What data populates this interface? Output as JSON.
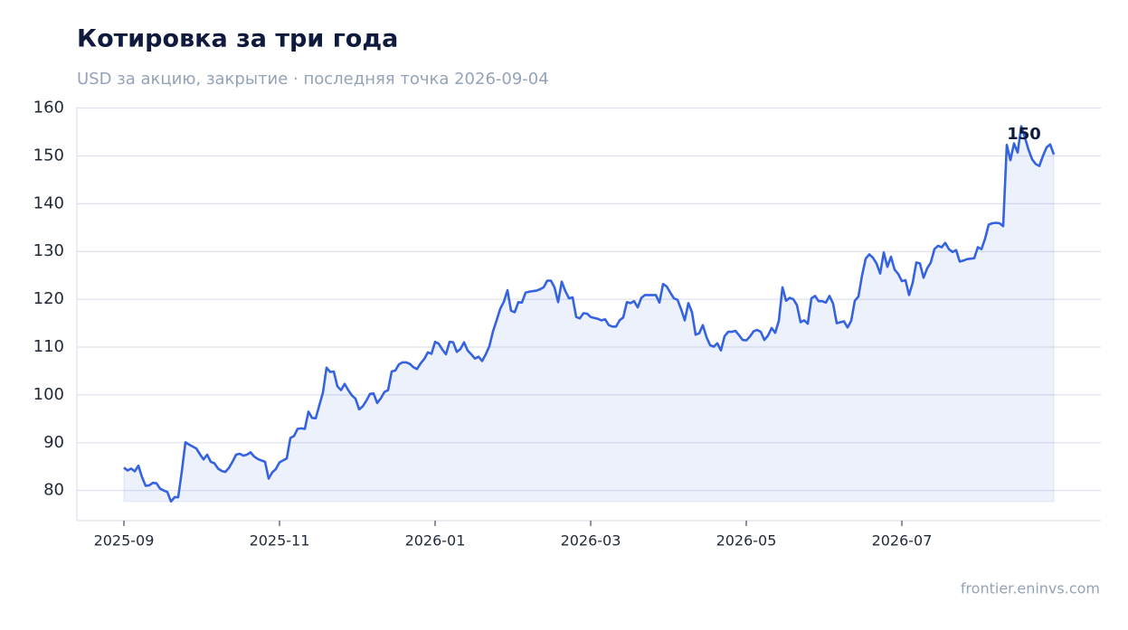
{
  "chart_data": {
    "type": "line",
    "title": "Котировка за три года",
    "subtitle": "USD за акцию, закрытие · последняя точка 2026-09-04",
    "source": "frontier.eninvs.com",
    "color": "#3563e0",
    "area": true,
    "grid": true,
    "last_value_label": "150",
    "values": [
      84.8,
      84.2,
      84.6,
      84.0,
      85.2,
      82.8,
      81.0,
      81.1,
      81.6,
      81.5,
      80.4,
      80.0,
      79.7,
      77.7,
      78.6,
      78.6,
      84.0,
      90.1,
      89.6,
      89.2,
      88.8,
      87.6,
      86.5,
      87.5,
      86.0,
      85.7,
      84.6,
      84.1,
      83.9,
      84.7,
      86.0,
      87.5,
      87.7,
      87.3,
      87.5,
      88.0,
      87.1,
      86.6,
      86.3,
      86.0,
      82.5,
      83.8,
      84.5,
      85.9,
      86.3,
      86.7,
      91.0,
      91.4,
      92.9,
      93.0,
      92.9,
      96.5,
      95.2,
      95.1,
      97.8,
      100.5,
      105.7,
      104.8,
      104.9,
      101.8,
      101.0,
      102.3,
      101.0,
      99.9,
      99.2,
      97.0,
      97.6,
      98.8,
      100.2,
      100.3,
      98.3,
      99.3,
      100.6,
      101.0,
      104.9,
      105.1,
      106.4,
      106.8,
      106.8,
      106.5,
      105.8,
      105.4,
      106.6,
      107.5,
      108.9,
      108.6,
      111.1,
      110.7,
      109.5,
      108.5,
      111.1,
      111.0,
      109.0,
      109.6,
      111.0,
      109.3,
      108.5,
      107.6,
      108.0,
      107.1,
      108.5,
      110.2,
      113.3,
      115.6,
      118.0,
      119.5,
      121.9,
      117.6,
      117.3,
      119.4,
      119.3,
      121.4,
      121.6,
      121.7,
      121.8,
      122.1,
      122.5,
      123.9,
      123.9,
      122.5,
      119.4,
      123.7,
      121.7,
      120.2,
      120.4,
      116.3,
      116.0,
      117.1,
      117.0,
      116.3,
      116.1,
      115.9,
      115.6,
      115.8,
      114.6,
      114.3,
      114.3,
      115.6,
      116.2,
      119.4,
      119.2,
      119.6,
      118.3,
      120.3,
      120.9,
      120.9,
      120.9,
      120.9,
      119.3,
      123.2,
      122.7,
      121.4,
      120.2,
      119.9,
      117.9,
      115.6,
      119.2,
      117.3,
      112.6,
      112.9,
      114.6,
      112.1,
      110.4,
      110.1,
      110.8,
      109.3,
      112.3,
      113.2,
      113.2,
      113.4,
      112.5,
      111.5,
      111.4,
      112.2,
      113.3,
      113.6,
      113.2,
      111.5,
      112.4,
      114.0,
      113.0,
      115.5,
      122.5,
      119.7,
      120.3,
      120.0,
      118.8,
      115.2,
      115.6,
      114.9,
      120.2,
      120.7,
      119.6,
      119.6,
      119.3,
      120.7,
      119.1,
      115.0,
      115.2,
      115.4,
      114.1,
      115.5,
      119.7,
      120.6,
      125.0,
      128.5,
      129.4,
      128.7,
      127.5,
      125.4,
      129.8,
      126.8,
      128.9,
      126.2,
      125.3,
      123.8,
      124.0,
      120.9,
      123.5,
      127.7,
      127.5,
      124.5,
      126.5,
      127.7,
      130.5,
      131.2,
      130.9,
      131.8,
      130.5,
      129.9,
      130.3,
      127.9,
      128.1,
      128.4,
      128.5,
      128.6,
      130.9,
      130.5,
      132.7,
      135.6,
      135.9,
      136.0,
      135.9,
      135.3,
      152.3,
      149.1,
      152.6,
      150.7,
      156.2,
      153.9,
      151.3,
      149.3,
      148.3,
      147.9,
      150.0,
      151.8,
      152.4,
      150.3
    ],
    "xlim": [
      -13,
      270
    ],
    "xticks": [
      {
        "value": 0,
        "label": "2025-09"
      },
      {
        "value": 43,
        "label": "2025-11"
      },
      {
        "value": 86,
        "label": "2026-01"
      },
      {
        "value": 129,
        "label": "2026-03"
      },
      {
        "value": 172,
        "label": "2026-05"
      },
      {
        "value": 215,
        "label": "2026-07"
      }
    ],
    "ylim": [
      73.7,
      160.3
    ],
    "yticks": [
      80,
      90,
      100,
      110,
      120,
      130,
      140,
      150,
      160
    ]
  }
}
